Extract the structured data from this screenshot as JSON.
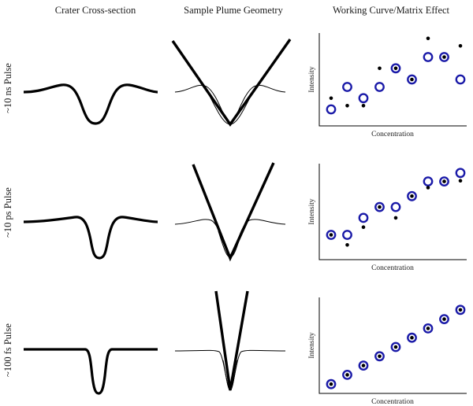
{
  "columns": [
    "Crater Cross-section",
    "Sample Plume Geometry",
    "Working Curve/Matrix Effect"
  ],
  "rows": [
    {
      "label": "~10 ns Pulse",
      "plot": {
        "xlabel": "Concentration",
        "ylabel": "Intensity",
        "open_points": [
          [
            1,
            2
          ],
          [
            2,
            5
          ],
          [
            3,
            3.5
          ],
          [
            4,
            5
          ],
          [
            5,
            7.5
          ],
          [
            6,
            6
          ],
          [
            7,
            9
          ],
          [
            8,
            9
          ],
          [
            9,
            6
          ]
        ],
        "filled_points": [
          [
            1,
            3.5
          ],
          [
            2,
            2.5
          ],
          [
            3,
            2.5
          ],
          [
            4,
            7.5
          ],
          [
            5,
            7.5
          ],
          [
            6,
            6
          ],
          [
            7,
            11.5
          ],
          [
            8,
            9
          ],
          [
            9,
            10.5
          ]
        ],
        "open_color": "#1a1aa8",
        "filled_color": "#000000"
      }
    },
    {
      "label": "~10 ps Pulse",
      "plot": {
        "xlabel": "Concentration",
        "ylabel": "Intensity",
        "open_points": [
          [
            1,
            3
          ],
          [
            2,
            3
          ],
          [
            3,
            5.2
          ],
          [
            4,
            6.6
          ],
          [
            5,
            6.6
          ],
          [
            6,
            8
          ],
          [
            7,
            9.9
          ],
          [
            8,
            9.9
          ],
          [
            9,
            11
          ]
        ],
        "filled_points": [
          [
            1,
            3
          ],
          [
            2,
            1.7
          ],
          [
            3,
            4
          ],
          [
            4,
            6.6
          ],
          [
            5,
            5.2
          ],
          [
            6,
            8
          ],
          [
            7,
            9.1
          ],
          [
            8,
            9.9
          ],
          [
            9,
            10
          ]
        ],
        "open_color": "#1a1aa8",
        "filled_color": "#000000"
      }
    },
    {
      "label": "~100 fs Pulse",
      "plot": {
        "xlabel": "Concentration",
        "ylabel": "Intensity",
        "open_points": [
          [
            1,
            1
          ],
          [
            2,
            2.2
          ],
          [
            3,
            3.4
          ],
          [
            4,
            4.6
          ],
          [
            5,
            5.8
          ],
          [
            6,
            7
          ],
          [
            7,
            8.2
          ],
          [
            8,
            9.4
          ],
          [
            9,
            10.6
          ]
        ],
        "filled_points": [
          [
            1,
            1
          ],
          [
            2,
            2.2
          ],
          [
            3,
            3.4
          ],
          [
            4,
            4.6
          ],
          [
            5,
            5.8
          ],
          [
            6,
            7
          ],
          [
            7,
            8.2
          ],
          [
            8,
            9.4
          ],
          [
            9,
            10.6
          ]
        ],
        "open_color": "#1a1aa8",
        "filled_color": "#000000"
      }
    }
  ]
}
